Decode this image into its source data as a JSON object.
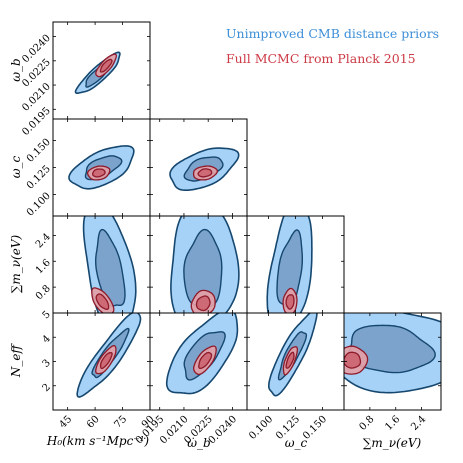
{
  "chart_data": {
    "type": "corner_contour",
    "parameters": [
      {
        "key": "H0",
        "label": "H₀(km s⁻¹Mpc⁻¹)",
        "range": [
          37,
          90
        ],
        "ticks": [
          "45",
          "60",
          "75",
          "90"
        ],
        "tick_values": [
          45,
          60,
          75,
          90
        ]
      },
      {
        "key": "omega_b",
        "label": "ω_b",
        "range": [
          0.0189,
          0.0249
        ],
        "ticks": [
          "0.0195",
          "0.0210",
          "0.0225",
          "0.0240"
        ],
        "tick_values": [
          0.0195,
          0.021,
          0.0225,
          0.024
        ]
      },
      {
        "key": "omega_c",
        "label": "ω_c",
        "range": [
          0.08,
          0.17
        ],
        "ticks": [
          "0.100",
          "0.125",
          "0.150"
        ],
        "tick_values": [
          0.1,
          0.125,
          0.15
        ]
      },
      {
        "key": "sum_mnu",
        "label": "∑m_ν(eV)",
        "range": [
          0,
          3.0
        ],
        "ticks": [
          "0.8",
          "1.6",
          "2.4"
        ],
        "tick_values": [
          0.8,
          1.6,
          2.4
        ]
      },
      {
        "key": "N_eff",
        "label": "N_eff",
        "range": [
          1,
          5
        ],
        "ticks": [
          "2",
          "3",
          "4",
          "5"
        ],
        "tick_values": [
          2,
          3,
          4,
          5
        ]
      }
    ],
    "y_axis_labels": {
      "omega_b": "ω_b",
      "omega_c": "ω_c",
      "sum_mnu": "∑m_ν(eV)",
      "N_eff": "N_eff"
    },
    "series": [
      {
        "name": "Unimproved CMB distance priors",
        "color": "#3d8fd8"
      },
      {
        "name": "Full MCMC from Planck 2015",
        "color": "#cc3b47"
      }
    ],
    "legend_position": "top-right",
    "colors": {
      "blue_outer_fill": "#a7d2f7",
      "blue_inner_fill": "#7ba3cc",
      "blue_line": "#15476f",
      "red_outer_fill": "#e6a0a5",
      "red_inner_fill": "#cd6a76",
      "red_line": "#8e1a2a"
    },
    "panels_estimated": [
      {
        "row": "omega_b",
        "col": "H0",
        "blue": {
          "center": [
            62,
            0.0217
          ],
          "corr": 0.88,
          "sigma1": [
            5.8,
            0.00062
          ],
          "outer_scale": [
            2.05,
            2.0
          ]
        },
        "red": {
          "center": [
            66,
            0.0222
          ],
          "corr": 0.78,
          "sigma1": [
            2.4,
            0.0003
          ]
        }
      },
      {
        "row": "omega_c",
        "col": "H0",
        "blue": {
          "center": [
            64,
            0.125
          ],
          "corr": 0.55,
          "sigma1": [
            7.5,
            0.0085
          ]
        },
        "red": {
          "center": [
            62,
            0.12
          ],
          "corr": 0.2,
          "sigma1": [
            2.6,
            0.0028
          ]
        }
      },
      {
        "row": "omega_c",
        "col": "omega_b",
        "blue": {
          "center": [
            0.0222,
            0.124
          ],
          "corr": 0.5,
          "sigma1": [
            0.0009,
            0.0085
          ]
        },
        "red": {
          "center": [
            0.0223,
            0.12
          ],
          "corr": 0.2,
          "sigma1": [
            0.00032,
            0.0028
          ]
        }
      },
      {
        "row": "sum_mnu",
        "col": "H0",
        "blue": {
          "center": [
            68,
            1.3
          ],
          "corr": -0.45,
          "sigma1": [
            6,
            0.9
          ]
        },
        "red": {
          "center": [
            64,
            0.35
          ],
          "corr": -0.6,
          "sigma1": [
            2.6,
            0.18
          ]
        }
      },
      {
        "row": "sum_mnu",
        "col": "omega_b",
        "blue": {
          "center": [
            0.0222,
            1.3
          ],
          "corr": 0.05,
          "sigma1": [
            0.0009,
            0.9
          ]
        },
        "red": {
          "center": [
            0.0222,
            0.3
          ],
          "corr": 0.15,
          "sigma1": [
            0.00032,
            0.17
          ]
        }
      },
      {
        "row": "sum_mnu",
        "col": "omega_c",
        "blue": {
          "center": [
            0.12,
            1.3
          ],
          "corr": 0.4,
          "sigma1": [
            0.009,
            0.9
          ]
        },
        "red": {
          "center": [
            0.12,
            0.35
          ],
          "corr": 0.1,
          "sigma1": [
            0.0028,
            0.17
          ]
        }
      },
      {
        "row": "N_eff",
        "col": "H0",
        "blue": {
          "center": [
            68,
            3.3
          ],
          "corr": 0.9,
          "sigma1": [
            7.5,
            0.75
          ]
        },
        "red": {
          "center": [
            66,
            3.05
          ],
          "corr": 0.75,
          "sigma1": [
            2.4,
            0.25
          ]
        }
      },
      {
        "row": "N_eff",
        "col": "omega_b",
        "blue": {
          "center": [
            0.0222,
            3.3
          ],
          "corr": 0.65,
          "sigma1": [
            0.00095,
            0.75
          ]
        },
        "red": {
          "center": [
            0.0223,
            3.05
          ],
          "corr": 0.65,
          "sigma1": [
            0.0003,
            0.25
          ]
        }
      },
      {
        "row": "N_eff",
        "col": "omega_c",
        "blue": {
          "center": [
            0.122,
            3.3
          ],
          "corr": 0.85,
          "sigma1": [
            0.0095,
            0.75
          ]
        },
        "red": {
          "center": [
            0.12,
            3.05
          ],
          "corr": 0.7,
          "sigma1": [
            0.0028,
            0.25
          ]
        }
      },
      {
        "row": "N_eff",
        "col": "sum_mnu",
        "blue": {
          "center": [
            1.4,
            3.5
          ],
          "corr": -0.15,
          "sigma1": [
            1.0,
            0.75
          ]
        },
        "red": {
          "center": [
            0.25,
            3.05
          ],
          "corr": 0.0,
          "sigma1": [
            0.2,
            0.25
          ]
        }
      }
    ]
  }
}
